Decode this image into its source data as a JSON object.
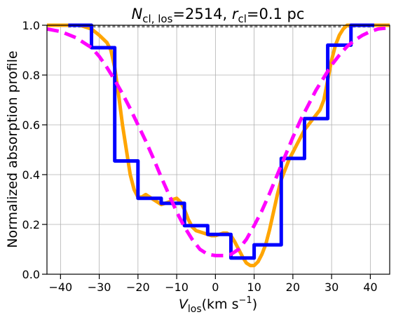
{
  "chart_data": {
    "type": "line",
    "title": {
      "prefix": "N",
      "prefix_sub": "cl, los",
      "middle": "=2514, ",
      "r": "r",
      "r_sub": "cl",
      "suffix": "=0.1 pc"
    },
    "xlabel": {
      "main": "V",
      "sub": "los",
      "units": "(km s",
      "exp": "−1",
      "close": ")"
    },
    "ylabel": "Normalized absorption profile",
    "xlim": [
      -43.5,
      45
    ],
    "ylim": [
      0.0,
      1.0
    ],
    "xticks": [
      -40,
      -30,
      -20,
      -10,
      0,
      10,
      20,
      30,
      40
    ],
    "xtick_labels": [
      "−40",
      "−30",
      "−20",
      "−10",
      "0",
      "10",
      "20",
      "30",
      "40"
    ],
    "yticks": [
      0.0,
      0.2,
      0.4,
      0.6,
      0.8,
      1.0
    ],
    "ytick_labels": [
      "0.0",
      "0.2",
      "0.4",
      "0.6",
      "0.8",
      "1.0"
    ],
    "grid": true,
    "colors": {
      "orange": "#FFA500",
      "blue": "#0000FF",
      "magenta": "#FF00FF",
      "gray": "#808080"
    },
    "series": [
      {
        "style": "solid",
        "color": "#FFA500",
        "x": [
          -43.5,
          -35,
          -32,
          -30,
          -28,
          -27,
          -26,
          -25,
          -24,
          -23,
          -22,
          -21,
          -20,
          -19,
          -18,
          -17,
          -16,
          -15,
          -14,
          -13,
          -12,
          -11,
          -10,
          -9,
          -8,
          -7,
          -6,
          -5,
          -4,
          -3,
          -2,
          -1,
          0,
          1,
          2,
          3,
          4,
          5,
          6,
          7,
          8,
          9,
          10,
          11,
          12,
          13,
          14,
          15,
          16,
          17,
          18,
          19,
          20,
          21,
          22,
          23,
          24,
          25,
          26,
          27,
          28,
          29,
          30,
          31,
          32,
          33,
          34,
          35,
          36,
          38,
          45
        ],
        "y": [
          1.0,
          1.0,
          0.985,
          0.96,
          0.93,
          0.9,
          0.83,
          0.72,
          0.6,
          0.5,
          0.4,
          0.34,
          0.31,
          0.31,
          0.32,
          0.31,
          0.3,
          0.29,
          0.28,
          0.285,
          0.29,
          0.3,
          0.305,
          0.29,
          0.26,
          0.22,
          0.19,
          0.175,
          0.17,
          0.165,
          0.16,
          0.155,
          0.155,
          0.16,
          0.165,
          0.165,
          0.155,
          0.13,
          0.1,
          0.07,
          0.045,
          0.035,
          0.035,
          0.05,
          0.08,
          0.12,
          0.18,
          0.25,
          0.32,
          0.38,
          0.42,
          0.46,
          0.49,
          0.52,
          0.55,
          0.58,
          0.6,
          0.62,
          0.64,
          0.66,
          0.7,
          0.78,
          0.86,
          0.92,
          0.96,
          0.985,
          1.0,
          1.0,
          1.0,
          1.0,
          1.0
        ]
      },
      {
        "style": "step",
        "color": "#0000FF",
        "x": [
          -38,
          -32,
          -32,
          -26,
          -26,
          -20,
          -20,
          -14,
          -14,
          -8,
          -8,
          -2,
          -2,
          4,
          4,
          10,
          10,
          17,
          17,
          23,
          23,
          29,
          29,
          35,
          35,
          41
        ],
        "y": [
          1.0,
          1.0,
          0.91,
          0.91,
          0.455,
          0.455,
          0.305,
          0.305,
          0.285,
          0.285,
          0.195,
          0.195,
          0.16,
          0.16,
          0.065,
          0.065,
          0.118,
          0.118,
          0.465,
          0.465,
          0.625,
          0.625,
          0.92,
          0.92,
          1.0,
          1.0
        ]
      },
      {
        "style": "dashed",
        "color": "#FF00FF",
        "x": [
          -43.5,
          -40,
          -36,
          -32,
          -30,
          -28,
          -26,
          -24,
          -22,
          -20,
          -18,
          -16,
          -14,
          -12,
          -10,
          -8,
          -6,
          -4,
          -2,
          0,
          2,
          4,
          6,
          8,
          10,
          12,
          14,
          16,
          18,
          20,
          22,
          24,
          26,
          28,
          30,
          32,
          34,
          36,
          38,
          40,
          42,
          45
        ],
        "y": [
          0.985,
          0.975,
          0.95,
          0.91,
          0.875,
          0.83,
          0.78,
          0.725,
          0.665,
          0.6,
          0.535,
          0.465,
          0.39,
          0.32,
          0.25,
          0.19,
          0.14,
          0.1,
          0.08,
          0.075,
          0.075,
          0.08,
          0.1,
          0.14,
          0.195,
          0.255,
          0.325,
          0.4,
          0.475,
          0.55,
          0.62,
          0.68,
          0.74,
          0.79,
          0.84,
          0.88,
          0.915,
          0.94,
          0.96,
          0.975,
          0.985,
          0.99
        ]
      },
      {
        "style": "dotted",
        "color": "#808080",
        "x": [
          -38,
          41
        ],
        "y": [
          0.995,
          0.995
        ]
      }
    ]
  }
}
